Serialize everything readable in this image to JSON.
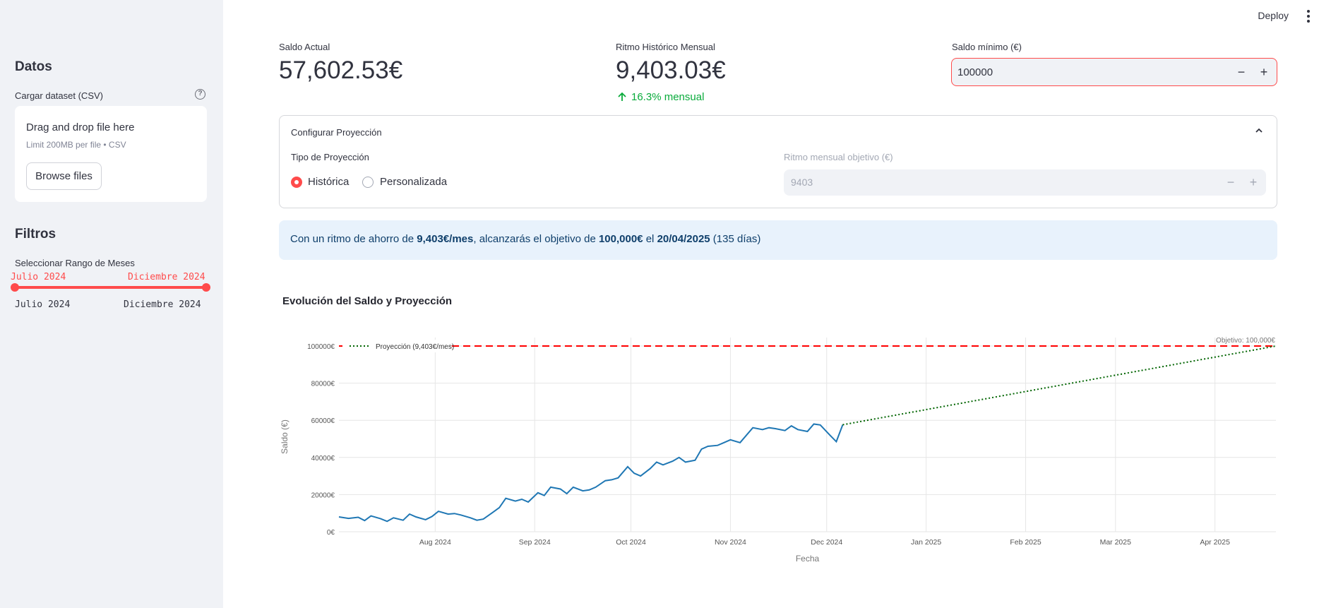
{
  "sidebar": {
    "datos_header": "Datos",
    "uploader_label": "Cargar dataset (CSV)",
    "uploader_help_icon": "question-circle-icon",
    "uploader_title": "Drag and drop file here",
    "uploader_limit": "Limit 200MB per file • CSV",
    "browse_label": "Browse files",
    "filtros_header": "Filtros",
    "slider_label": "Seleccionar Rango de Meses",
    "slider_value_start": "Julio 2024",
    "slider_value_end": "Diciembre 2024",
    "slider_min": "Julio 2024",
    "slider_max": "Diciembre 2024"
  },
  "toolbar": {
    "deploy_label": "Deploy",
    "menu_icon": "more-vertical-icon"
  },
  "metrics": {
    "saldo_label": "Saldo Actual",
    "saldo_value": "57,602.53€",
    "ritmo_label": "Ritmo Histórico Mensual",
    "ritmo_value": "9,403.03€",
    "ritmo_delta": "16.3% mensual",
    "delta_icon": "arrow-up-icon"
  },
  "saldo_minimo": {
    "label": "Saldo mínimo (€)",
    "value": "100000",
    "minus": "−",
    "plus": "+"
  },
  "expander": {
    "header": "Configurar Proyección",
    "chevron_icon": "chevron-up-icon",
    "tipo_label": "Tipo de Proyección",
    "options": [
      "Histórica",
      "Personalizada"
    ],
    "selected": "Histórica",
    "ritmo_obj_label": "Ritmo mensual objetivo (€)",
    "ritmo_obj_value": "9403",
    "minus": "−",
    "plus": "+"
  },
  "info": {
    "p1": "Con un ritmo de ahorro de ",
    "b1": "9,403€/mes",
    "p2": ", alcanzarás el objetivo de ",
    "b2": "100,000€",
    "p3": " el ",
    "b3": "20/04/2025",
    "p4": " (135 días)"
  },
  "chart_title": "Evolución del Saldo y Proyección",
  "colors": {
    "accent": "#ff4b4b",
    "sidebar_bg": "#f0f2f6",
    "line": "#1f77b4",
    "projection": "#006400",
    "target": "#ff0000",
    "delta_green": "#09ab3b",
    "info_bg": "#e8f2fc"
  },
  "chart_data": {
    "type": "line",
    "xlabel": "Fecha",
    "ylabel": "Saldo (€)",
    "ylim": [
      0,
      100000
    ],
    "yticks": [
      0,
      20000,
      40000,
      60000,
      80000,
      100000
    ],
    "ytick_labels": [
      "0€",
      "20000€",
      "40000€",
      "60000€",
      "80000€",
      "100000€"
    ],
    "xticks": [
      "Aug 2024",
      "Sep 2024",
      "Oct 2024",
      "Nov 2024",
      "Dec 2024",
      "Jan 2025",
      "Feb 2025",
      "Mar 2025",
      "Apr 2025"
    ],
    "xrange": [
      "2024-07-02",
      "2025-04-20"
    ],
    "grid": true,
    "target_line": {
      "value": 100000,
      "annotation": "Objetivo: 100,000€"
    },
    "series": [
      {
        "style": "solid",
        "x": [
          "2024-07-02",
          "2024-07-05",
          "2024-07-08",
          "2024-07-10",
          "2024-07-12",
          "2024-07-15",
          "2024-07-17",
          "2024-07-19",
          "2024-07-22",
          "2024-07-24",
          "2024-07-26",
          "2024-07-29",
          "2024-07-31",
          "2024-08-02",
          "2024-08-05",
          "2024-08-07",
          "2024-08-09",
          "2024-08-12",
          "2024-08-14",
          "2024-08-16",
          "2024-08-19",
          "2024-08-21",
          "2024-08-23",
          "2024-08-26",
          "2024-08-28",
          "2024-08-30",
          "2024-09-02",
          "2024-09-04",
          "2024-09-06",
          "2024-09-09",
          "2024-09-11",
          "2024-09-13",
          "2024-09-16",
          "2024-09-18",
          "2024-09-20",
          "2024-09-23",
          "2024-09-25",
          "2024-09-27",
          "2024-09-30",
          "2024-10-02",
          "2024-10-04",
          "2024-10-07",
          "2024-10-09",
          "2024-10-11",
          "2024-10-14",
          "2024-10-16",
          "2024-10-18",
          "2024-10-21",
          "2024-10-23",
          "2024-10-25",
          "2024-10-28",
          "2024-10-30",
          "2024-11-01",
          "2024-11-04",
          "2024-11-06",
          "2024-11-08",
          "2024-11-11",
          "2024-11-13",
          "2024-11-15",
          "2024-11-18",
          "2024-11-20",
          "2024-11-22",
          "2024-11-25",
          "2024-11-27",
          "2024-11-29",
          "2024-12-02",
          "2024-12-04",
          "2024-12-06"
        ],
        "values": [
          8000,
          7200,
          7800,
          6000,
          8500,
          7000,
          5600,
          7500,
          6200,
          9500,
          8000,
          6500,
          8200,
          11000,
          9500,
          9800,
          9000,
          7500,
          6200,
          6800,
          10500,
          13000,
          18000,
          16500,
          17500,
          16000,
          21000,
          19500,
          24000,
          23000,
          20500,
          24000,
          22000,
          22500,
          24000,
          27500,
          28000,
          29000,
          35000,
          31500,
          30000,
          34000,
          37500,
          36000,
          38000,
          40000,
          37500,
          38500,
          44500,
          46000,
          46500,
          48000,
          49500,
          48000,
          52000,
          56000,
          55000,
          56000,
          55500,
          54500,
          57000,
          55000,
          54000,
          58000,
          57500,
          52000,
          48500,
          57600
        ]
      },
      {
        "name": "Proyección (9,403€/mes)",
        "style": "dotted",
        "x": [
          "2024-12-06",
          "2025-04-20"
        ],
        "values": [
          57602.53,
          100000
        ]
      }
    ]
  }
}
